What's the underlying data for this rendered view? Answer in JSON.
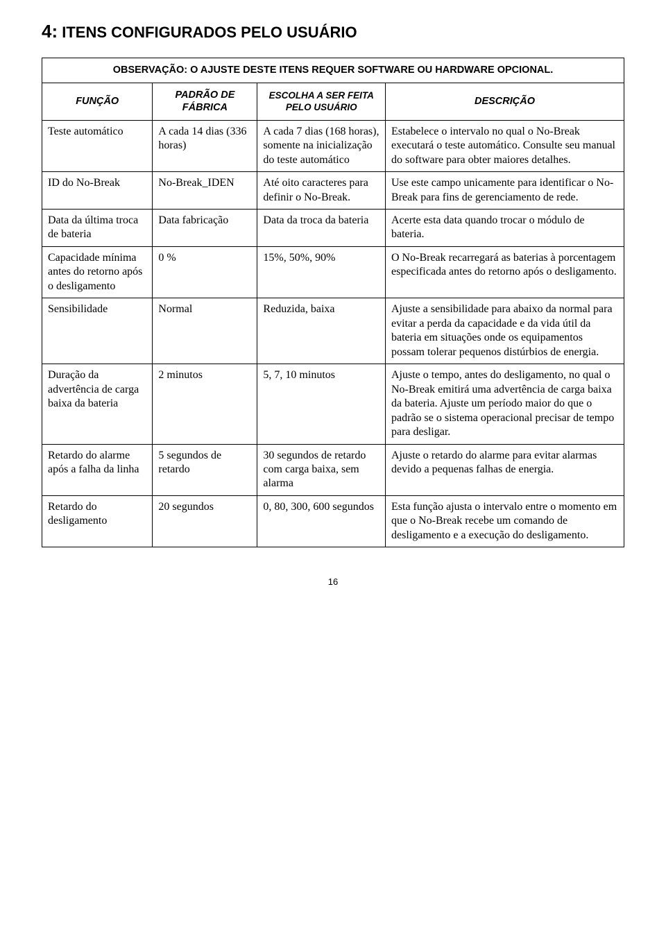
{
  "section": {
    "number": "4:",
    "title": "ITENS CONFIGURADOS PELO USUÁRIO"
  },
  "observation": {
    "prefix": "OBSERVAÇÃO:",
    "text": "O AJUSTE DESTE ITENS REQUER SOFTWARE OU HARDWARE OPCIONAL."
  },
  "headers": {
    "funcao": "FUNÇÃO",
    "padrao": "PADRÃO DE FÁBRICA",
    "escolha": "ESCOLHA A SER FEITA PELO USUÁRIO",
    "descricao": "DESCRIÇÃO"
  },
  "rows": [
    {
      "funcao": "Teste automático",
      "padrao": "A cada 14 dias (336 horas)",
      "escolha": "A cada 7 dias (168 horas), somente na inicialização do teste automático",
      "descricao": "Estabelece o intervalo no qual o No-Break executará o teste automático. Consulte seu manual do software para obter maiores detalhes."
    },
    {
      "funcao": "ID do No-Break",
      "padrao": "No-Break_IDEN",
      "escolha": "Até oito caracteres para definir o No-Break.",
      "descricao": "Use este campo unicamente para identificar o No-Break para fins de gerenciamento de rede."
    },
    {
      "funcao": "Data da última troca de bateria",
      "padrao": "Data fabricação",
      "escolha": "Data da troca da bateria",
      "descricao": "Acerte esta data quando trocar o módulo de bateria."
    },
    {
      "funcao": "Capacidade mínima antes do retorno após o desligamento",
      "padrao": "0 %",
      "escolha": "15%, 50%, 90%",
      "descricao": "O No-Break recarregará as baterias à porcentagem especificada antes do retorno após o desligamento."
    },
    {
      "funcao": "Sensibilidade",
      "padrao": "Normal",
      "escolha": "Reduzida, baixa",
      "descricao": "Ajuste a sensibilidade para abaixo da normal para evitar a perda da capacidade e da vida útil da bateria em situações onde os equipamentos possam tolerar pequenos distúrbios de energia."
    },
    {
      "funcao": "Duração da advertência de carga baixa da bateria",
      "padrao": "2 minutos",
      "escolha": "5, 7, 10 minutos",
      "descricao": "Ajuste o tempo, antes do desligamento, no qual o No-Break emitirá uma advertência de carga baixa da bateria. Ajuste um período maior do que o padrão se o sistema operacional precisar de tempo para desligar."
    },
    {
      "funcao": "Retardo do alarme após a falha da linha",
      "padrao": "5 segundos de retardo",
      "escolha": "30 segundos de retardo com carga baixa, sem alarma",
      "descricao": "Ajuste o retardo do alarme para evitar alarmas devido a pequenas falhas de energia."
    },
    {
      "funcao": "Retardo do desligamento",
      "padrao": "20 segundos",
      "escolha": "0, 80, 300, 600 segundos",
      "descricao": "Esta função ajusta o intervalo entre o momento em que o No-Break recebe um comando de desligamento e a execução do desligamento."
    }
  ],
  "page_number": "16",
  "styles": {
    "font_family_body": "Times New Roman",
    "font_family_headers": "Arial",
    "border_color": "#000000",
    "background_color": "#ffffff",
    "text_color": "#000000"
  }
}
